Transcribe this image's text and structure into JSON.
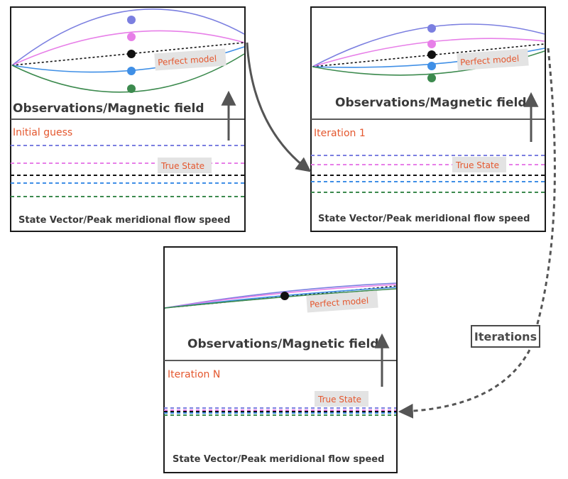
{
  "colors": {
    "purple": "#7b7fe0",
    "pink": "#e77fe8",
    "black": "#111111",
    "blue": "#3f8fe6",
    "green": "#3c8a4e",
    "label_red": "#e4572e",
    "arrow_gray": "#555555"
  },
  "panel1": {
    "obs_label": "Observations/Magnetic field",
    "step_label": "Initial guess",
    "model_tag": "Perfect model",
    "true_state_tag": "True State",
    "state_label": "State Vector/Peak meridional flow speed"
  },
  "panel2": {
    "obs_label": "Observations/Magnetic field",
    "step_label": "Iteration 1",
    "model_tag": "Perfect model",
    "true_state_tag": "True State",
    "state_label": "State Vector/Peak meridional flow speed"
  },
  "panel3": {
    "obs_label": "Observations/Magnetic field",
    "step_label": "Iteration N",
    "model_tag": "Perfect model",
    "true_state_tag": "True State",
    "state_label": "State Vector/Peak meridional flow speed"
  },
  "iterations_label": "Iterations"
}
